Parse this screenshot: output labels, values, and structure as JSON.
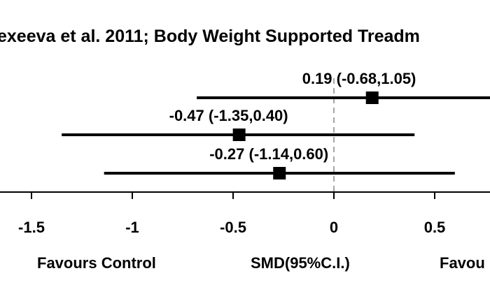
{
  "chart_data": {
    "type": "forest",
    "title": "exeeva et al. 2011; Body Weight Supported Treadm",
    "xlabel": "SMD(95%C.I.)",
    "favours_left": "Favours  Control",
    "favours_right": "Favou",
    "xlim": [
      -1.66,
      0.73
    ],
    "ticks": [
      {
        "value": -1.5,
        "label": "-1.5"
      },
      {
        "value": -1,
        "label": "-1"
      },
      {
        "value": -0.5,
        "label": "-0.5"
      },
      {
        "value": 0,
        "label": "0"
      },
      {
        "value": 0.5,
        "label": "0.5"
      }
    ],
    "reference_line": 0,
    "studies": [
      {
        "estimate": 0.19,
        "lower": -0.68,
        "upper": 1.05,
        "label": "0.19 (-0.68,1.05)"
      },
      {
        "estimate": -0.47,
        "lower": -1.35,
        "upper": 0.4,
        "label": "-0.47 (-1.35,0.40)"
      },
      {
        "estimate": -0.27,
        "lower": -1.14,
        "upper": 0.6,
        "label": "-0.27 (-1.14,0.60)"
      }
    ]
  }
}
